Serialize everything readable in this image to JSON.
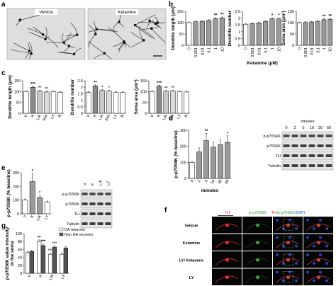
{
  "panel_labels": [
    "a",
    "b",
    "c",
    "d",
    "e",
    "f",
    "g"
  ],
  "micrographs": {
    "labels": [
      "Vehicle",
      "Ketamine"
    ]
  },
  "chart_data": [
    {
      "type": "bar",
      "ylabel": "Dendrite length (μm)",
      "categories": [
        "0",
        "0.001",
        "0.01",
        "0.1",
        "1",
        "10"
      ],
      "values": [
        100,
        104,
        106,
        110,
        118,
        121
      ],
      "errors": [
        3,
        3,
        3,
        3,
        4,
        4
      ],
      "colors": [
        "#ffffff",
        "#9a9a9a",
        "#9a9a9a",
        "#9a9a9a",
        "#9a9a9a",
        "#9a9a9a"
      ],
      "ylim": [
        0,
        150
      ],
      "yticks": [
        0,
        50,
        100,
        150
      ],
      "annotations": [
        {
          "index": 4,
          "text": "**"
        },
        {
          "index": 5,
          "text": "**"
        }
      ]
    },
    {
      "type": "bar",
      "ylabel": "Dendrite number",
      "xlabel": "Ketamine (μM)",
      "categories": [
        "0",
        "0.001",
        "0.01",
        "0.1",
        "1",
        "10"
      ],
      "values": [
        1.55,
        1.6,
        1.65,
        1.75,
        1.95,
        1.95
      ],
      "errors": [
        0.05,
        0.05,
        0.05,
        0.06,
        0.07,
        0.07
      ],
      "colors": [
        "#ffffff",
        "#9a9a9a",
        "#9a9a9a",
        "#9a9a9a",
        "#9a9a9a",
        "#9a9a9a"
      ],
      "ylim": [
        0,
        2.5
      ],
      "yticks": [
        0,
        0.5,
        1,
        1.5,
        2,
        2.5
      ],
      "annotations": [
        {
          "index": 4,
          "text": "*"
        },
        {
          "index": 5,
          "text": "*"
        }
      ]
    },
    {
      "type": "bar",
      "ylabel": "Soma area (μm²)",
      "categories": [
        "0",
        "0.001",
        "0.01",
        "0.1",
        "1",
        "10"
      ],
      "values": [
        100,
        101,
        103,
        106,
        113,
        115
      ],
      "errors": [
        3,
        3,
        3,
        3,
        4,
        4
      ],
      "colors": [
        "#ffffff",
        "#9a9a9a",
        "#9a9a9a",
        "#9a9a9a",
        "#9a9a9a",
        "#9a9a9a"
      ],
      "ylim": [
        0,
        150
      ],
      "yticks": [
        0,
        50,
        100,
        150
      ],
      "annotations": [
        {
          "index": 4,
          "text": "**"
        },
        {
          "index": 5,
          "text": "**"
        }
      ]
    },
    {
      "type": "bar",
      "ylabel": "Dendrite length (μm)",
      "categories": [
        "V",
        "K",
        "L/K",
        "R/K",
        "LY",
        "R"
      ],
      "values": [
        100,
        120,
        103,
        98,
        100,
        97
      ],
      "errors": [
        3,
        4,
        3,
        3,
        3,
        3
      ],
      "colors": [
        "#ffffff",
        "#8a8a8a",
        "#c8c8c8",
        "#dcdcdc",
        "#ffffff",
        "#ffffff"
      ],
      "ylim": [
        0,
        150
      ],
      "yticks": [
        0,
        50,
        100,
        150
      ],
      "annotations": [
        {
          "index": 1,
          "text": "***"
        },
        {
          "index": 2,
          "text": "°°"
        },
        {
          "index": 3,
          "text": "°°"
        }
      ]
    },
    {
      "type": "bar",
      "ylabel": "Dendrite number",
      "categories": [
        "V",
        "K",
        "L/K",
        "R/K",
        "LY",
        "R"
      ],
      "values": [
        1.6,
        2.1,
        1.75,
        1.7,
        1.6,
        1.6
      ],
      "errors": [
        0.06,
        0.08,
        0.06,
        0.06,
        0.06,
        0.06
      ],
      "colors": [
        "#ffffff",
        "#8a8a8a",
        "#c8c8c8",
        "#dcdcdc",
        "#ffffff",
        "#ffffff"
      ],
      "ylim": [
        0,
        2.5
      ],
      "yticks": [
        0,
        0.5,
        1,
        1.5,
        2,
        2.5
      ],
      "annotations": [
        {
          "index": 1,
          "text": "**"
        },
        {
          "index": 2,
          "text": "°"
        },
        {
          "index": 3,
          "text": "°"
        }
      ]
    },
    {
      "type": "bar",
      "ylabel": "Soma area (μm²)",
      "categories": [
        "V",
        "K",
        "L/K",
        "R/K",
        "LY",
        "R"
      ],
      "values": [
        100,
        125,
        102,
        103,
        100,
        98
      ],
      "errors": [
        3,
        4,
        3,
        3,
        3,
        3
      ],
      "colors": [
        "#ffffff",
        "#8a8a8a",
        "#c8c8c8",
        "#dcdcdc",
        "#ffffff",
        "#ffffff"
      ],
      "ylim": [
        0,
        150
      ],
      "yticks": [
        0,
        50,
        100,
        150
      ],
      "annotations": [
        {
          "index": 1,
          "text": "***"
        },
        {
          "index": 2,
          "text": "°°"
        },
        {
          "index": 3,
          "text": "°°"
        }
      ]
    },
    {
      "type": "bar",
      "ylabel": "p-p70S6K (% baseline)",
      "xlabel": "minutes",
      "categories": [
        "0",
        "2",
        "5",
        "10",
        "30",
        "60"
      ],
      "values": [
        100,
        165,
        235,
        195,
        210,
        225
      ],
      "errors": [
        5,
        25,
        45,
        30,
        30,
        40
      ],
      "colors": [
        "#ffffff",
        "#9a9a9a",
        "#9a9a9a",
        "#9a9a9a",
        "#9a9a9a",
        "#9a9a9a"
      ],
      "ylim": [
        0,
        300
      ],
      "yticks": [
        0,
        100,
        200,
        300
      ],
      "annotations": [
        {
          "index": 2,
          "text": "**"
        },
        {
          "index": 5,
          "text": "*"
        }
      ]
    },
    {
      "type": "bar",
      "ylabel": "p-p70S6K (% baseline)",
      "categories": [
        "V",
        "K",
        "L/K",
        "LY"
      ],
      "values": [
        100,
        235,
        120,
        85
      ],
      "errors": [
        8,
        60,
        15,
        8
      ],
      "colors": [
        "#ffffff",
        "#9a9a9a",
        "#9a9a9a",
        "#ffffff"
      ],
      "ylim": [
        0,
        300
      ],
      "yticks": [
        0,
        100,
        200,
        300
      ],
      "annotations": [
        {
          "index": 1,
          "text": "*"
        },
        {
          "index": 2,
          "text": "°"
        }
      ]
    },
    {
      "type": "grouped_bar",
      "ylabel": [
        "p-p70S6K value intensity",
        "in the soma"
      ],
      "categories": [
        "V",
        "K",
        "L/K",
        "LY"
      ],
      "series": [
        {
          "name": "DA neurons",
          "color": "#ffffff",
          "values": [
            52,
            80,
            48,
            48
          ],
          "errors": [
            3,
            4,
            3,
            3
          ]
        },
        {
          "name": "Non DA neurons",
          "color": "#555555",
          "values": [
            55,
            70,
            66,
            64
          ],
          "errors": [
            3,
            4,
            3,
            3
          ]
        }
      ],
      "ylim": [
        0,
        100
      ],
      "yticks": [
        0,
        20,
        40,
        60,
        80,
        100
      ],
      "annotations": [
        {
          "series": 0,
          "index": 1,
          "text": "**"
        },
        {
          "series": 1,
          "index": 1,
          "text": "***"
        },
        {
          "series": 0,
          "index": 2,
          "text": "°°°"
        },
        {
          "series": 1,
          "index": 2,
          "text": "°°°"
        }
      ]
    }
  ],
  "blots": [
    {
      "header": "minutes",
      "lanes": [
        "0",
        "2",
        "5",
        "10",
        "30",
        "60"
      ],
      "rows": [
        "p-p70S6K",
        "p70S6K",
        "TH",
        "Tubulin"
      ]
    },
    {
      "lanes": [
        "V",
        "K",
        "L/K",
        "LY"
      ],
      "rows": [
        "p-p70S6K",
        "p70S6K",
        "TH",
        "Tubulin"
      ]
    }
  ],
  "fluorescence": {
    "columns": [
      "TH",
      "p-p70S6K"
    ],
    "merge": [
      "TH",
      "/p-p70S6K",
      "/DAPI"
    ],
    "rows": [
      "Vehicle",
      "Ketamine",
      "LY/ Ketamine",
      "LY"
    ]
  }
}
